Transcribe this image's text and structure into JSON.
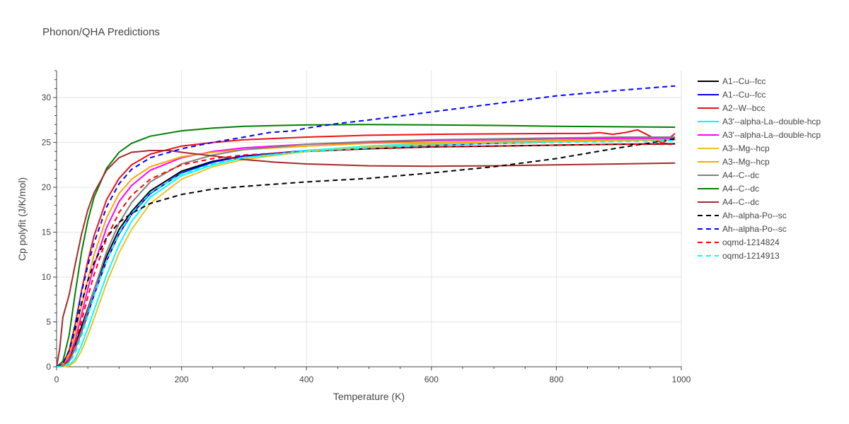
{
  "chart_data": {
    "type": "line",
    "title": "Phonon/QHA Predictions",
    "xlabel": "Temperature (K)",
    "ylabel": "Cp polyfit (J/K/mol)",
    "xlim": [
      0,
      1000
    ],
    "ylim": [
      0,
      33
    ],
    "xticks": [
      0,
      200,
      400,
      600,
      800,
      1000
    ],
    "yticks": [
      0,
      5,
      10,
      15,
      20,
      25,
      30
    ],
    "grid": true,
    "legend_position": "right",
    "series": [
      {
        "name": "A1--Cu--fcc",
        "color": "#000000",
        "dash": "solid",
        "x": [
          0,
          10,
          20,
          30,
          40,
          50,
          60,
          80,
          100,
          120,
          150,
          200,
          250,
          300,
          400,
          500,
          600,
          700,
          800,
          900,
          990
        ],
        "y": [
          0,
          0.2,
          1,
          2.5,
          4.5,
          6.5,
          8.6,
          12.3,
          15.3,
          17.3,
          19.6,
          21.8,
          22.9,
          23.5,
          24.0,
          24.3,
          24.5,
          24.6,
          24.7,
          24.8,
          24.85
        ]
      },
      {
        "name": "A1--Cu--fcc",
        "color": "#0000ff",
        "dash": "solid",
        "x": [
          0,
          10,
          20,
          30,
          40,
          50,
          60,
          80,
          100,
          120,
          150,
          200,
          250,
          300,
          400,
          500,
          600,
          700,
          800,
          900,
          990
        ],
        "y": [
          0,
          0.1,
          0.7,
          2,
          3.9,
          5.9,
          8,
          11.8,
          14.8,
          17,
          19.3,
          21.6,
          22.8,
          23.5,
          24.1,
          24.5,
          24.7,
          24.9,
          25.1,
          25.2,
          25.3
        ]
      },
      {
        "name": "A2--W--bcc",
        "color": "#ee1111",
        "dash": "solid",
        "x": [
          0,
          10,
          20,
          30,
          40,
          50,
          60,
          80,
          100,
          120,
          150,
          200,
          250,
          300,
          400,
          500,
          600,
          700,
          800,
          850,
          870,
          890,
          910,
          930,
          950,
          970,
          990
        ],
        "y": [
          0,
          0.3,
          1.8,
          4.8,
          8.5,
          11.8,
          14.6,
          18.6,
          21,
          22.5,
          23.7,
          24.6,
          25.0,
          25.3,
          25.6,
          25.8,
          25.9,
          25.95,
          26.0,
          26.0,
          26.1,
          25.9,
          26.1,
          26.4,
          25.7,
          24.9,
          26.0
        ]
      },
      {
        "name": "A3'--alpha-La--double-hcp",
        "color": "#00ffff",
        "dash": "solid",
        "x": [
          0,
          10,
          20,
          30,
          40,
          50,
          60,
          80,
          100,
          120,
          150,
          200,
          250,
          300,
          400,
          500,
          600,
          700,
          800,
          900,
          990
        ],
        "y": [
          0,
          0,
          0.2,
          0.9,
          2.4,
          4.3,
          6.3,
          10.2,
          13.6,
          16.2,
          18.9,
          21.3,
          22.5,
          23.3,
          24.1,
          24.6,
          24.9,
          25.1,
          25.2,
          25.3,
          25.4
        ]
      },
      {
        "name": "A3'--alpha-La--double-hcp",
        "color": "#ff00ff",
        "dash": "solid",
        "x": [
          0,
          10,
          20,
          30,
          40,
          50,
          60,
          80,
          100,
          120,
          150,
          200,
          250,
          300,
          400,
          500,
          600,
          700,
          800,
          900,
          990
        ],
        "y": [
          0,
          0.15,
          1,
          3,
          5.8,
          8.7,
          11.3,
          15.5,
          18.4,
          20.2,
          21.9,
          23.3,
          24.0,
          24.4,
          24.8,
          25.0,
          25.2,
          25.3,
          25.4,
          25.45,
          25.5
        ]
      },
      {
        "name": "A3--Mg--hcp",
        "color": "#f0c020",
        "dash": "solid",
        "x": [
          0,
          10,
          20,
          30,
          40,
          50,
          60,
          80,
          100,
          120,
          150,
          200,
          250,
          300,
          400,
          500,
          600,
          700,
          800,
          900,
          990
        ],
        "y": [
          0,
          0,
          0.1,
          0.6,
          1.8,
          3.5,
          5.4,
          9.3,
          12.7,
          15.3,
          18.2,
          20.9,
          22.3,
          23.1,
          24.0,
          24.5,
          24.8,
          25.0,
          25.1,
          25.2,
          25.3
        ]
      },
      {
        "name": "A3--Mg--hcp",
        "color": "#ffa500",
        "dash": "solid",
        "x": [
          0,
          10,
          20,
          30,
          40,
          50,
          60,
          80,
          100,
          120,
          150,
          200,
          250,
          300,
          400,
          500,
          600,
          700,
          800,
          900,
          990
        ],
        "y": [
          0,
          0.2,
          1.3,
          3.7,
          6.8,
          9.8,
          12.5,
          16.6,
          19.3,
          20.9,
          22.3,
          23.4,
          23.9,
          24.2,
          24.6,
          24.9,
          25.0,
          25.1,
          25.2,
          25.3,
          25.3
        ]
      },
      {
        "name": "A4--C--dc",
        "color": "#808080",
        "dash": "solid",
        "x": [
          0,
          10,
          20,
          30,
          40,
          50,
          60,
          80,
          100,
          120,
          150,
          200,
          250,
          300,
          400,
          500,
          600,
          700,
          800,
          900,
          990
        ],
        "y": [
          0,
          0.1,
          0.6,
          2,
          4,
          6.3,
          8.6,
          12.8,
          16,
          18.3,
          20.6,
          22.6,
          23.6,
          24.2,
          24.8,
          25.1,
          25.3,
          25.4,
          25.5,
          25.6,
          25.6
        ]
      },
      {
        "name": "A4--C--dc",
        "color": "#008000",
        "dash": "solid",
        "x": [
          0,
          10,
          20,
          30,
          40,
          50,
          60,
          80,
          100,
          120,
          150,
          200,
          250,
          300,
          400,
          500,
          600,
          700,
          800,
          900,
          990
        ],
        "y": [
          0,
          0.6,
          3.5,
          8.3,
          12.8,
          16.3,
          18.9,
          22.1,
          23.9,
          24.9,
          25.7,
          26.3,
          26.6,
          26.8,
          26.95,
          27.0,
          26.95,
          26.9,
          26.8,
          26.75,
          26.7
        ]
      },
      {
        "name": "A4--C--dc",
        "color": "#a52a2a",
        "dash": "solid",
        "x": [
          0,
          5,
          10,
          20,
          30,
          40,
          50,
          60,
          80,
          100,
          120,
          150,
          180,
          200,
          250,
          300,
          350,
          400,
          500,
          600,
          700,
          800,
          900,
          990
        ],
        "y": [
          0,
          2,
          5.5,
          8,
          11.5,
          14.8,
          17.5,
          19.4,
          21.9,
          23.3,
          23.9,
          24.1,
          24.1,
          23.9,
          23.5,
          23.1,
          22.8,
          22.6,
          22.4,
          22.35,
          22.4,
          22.5,
          22.6,
          22.7
        ]
      },
      {
        "name": "Ah--alpha-Po--sc",
        "color": "#000000",
        "dash": "dash",
        "x": [
          0,
          10,
          20,
          30,
          40,
          50,
          60,
          80,
          100,
          120,
          150,
          200,
          250,
          300,
          400,
          500,
          600,
          700,
          800,
          900,
          990
        ],
        "y": [
          0,
          0.3,
          1.8,
          4.3,
          7.1,
          9.6,
          11.6,
          14.4,
          16.1,
          17.1,
          18.2,
          19.2,
          19.8,
          20.1,
          20.6,
          21.0,
          21.6,
          22.3,
          23.2,
          24.4,
          25.4
        ]
      },
      {
        "name": "Ah--alpha-Po--sc",
        "color": "#0000ff",
        "dash": "dash",
        "x": [
          0,
          10,
          20,
          30,
          40,
          50,
          60,
          80,
          100,
          120,
          150,
          200,
          250,
          300,
          340,
          360,
          380,
          400,
          450,
          500,
          600,
          700,
          800,
          900,
          990
        ],
        "y": [
          0,
          0.3,
          1.8,
          4.8,
          8.3,
          11.3,
          13.8,
          17.8,
          20.4,
          22.0,
          23.3,
          24.3,
          25.0,
          25.6,
          26.1,
          26.2,
          26.3,
          26.6,
          27.1,
          27.5,
          28.4,
          29.3,
          30.2,
          30.8,
          31.3
        ]
      },
      {
        "name": "oqmd-1214824",
        "color": "#ff0000",
        "dash": "dash",
        "x": [
          0,
          10,
          20,
          30,
          40,
          50,
          60,
          80,
          100,
          120,
          150,
          200,
          250,
          300,
          400,
          500,
          600,
          700,
          800,
          900,
          990
        ],
        "y": [
          0,
          0.1,
          0.8,
          2.6,
          5.1,
          7.8,
          10.3,
          14.3,
          17.2,
          19.1,
          20.9,
          22.5,
          23.2,
          23.6,
          24.0,
          24.3,
          24.5,
          24.6,
          24.7,
          24.8,
          24.8
        ]
      },
      {
        "name": "oqmd-1214913",
        "color": "#00ffff",
        "dash": "dash",
        "x": [
          0,
          10,
          20,
          30,
          40,
          50,
          60,
          80,
          100,
          120,
          150,
          200,
          250,
          300,
          400,
          500,
          600,
          700,
          800,
          900,
          990
        ],
        "y": [
          0,
          0.05,
          0.4,
          1.6,
          3.5,
          5.7,
          7.9,
          11.8,
          14.9,
          17.1,
          19.4,
          21.5,
          22.6,
          23.3,
          24.0,
          24.4,
          24.7,
          24.9,
          25.0,
          25.1,
          25.2
        ]
      }
    ]
  }
}
